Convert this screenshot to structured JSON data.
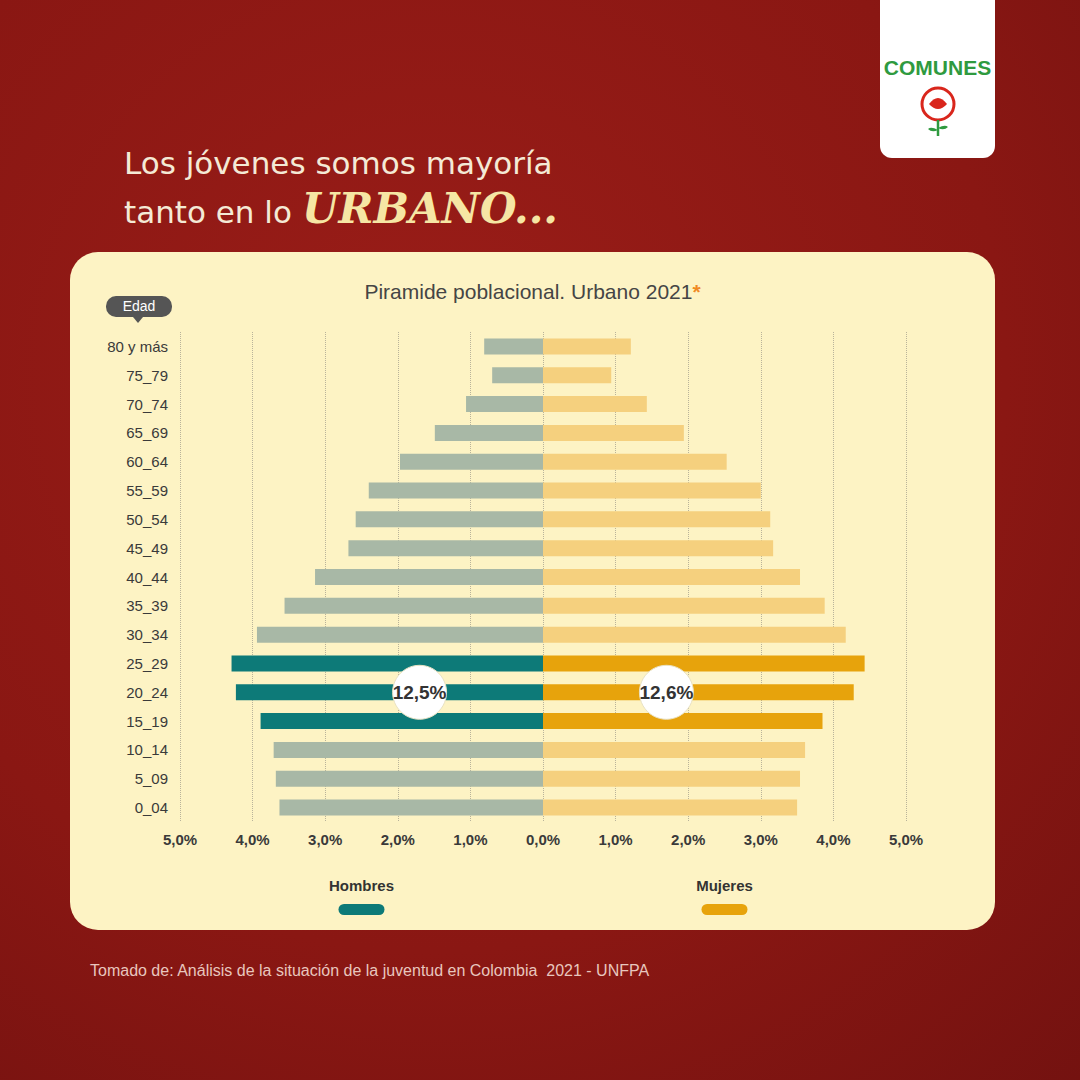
{
  "logo": "COMUNES",
  "headline": [
    "Los jóvenes somos mayoría",
    "tanto en lo"
  ],
  "headline_emphasis": "URBANO...",
  "source": "Tomado de: Análisis de la situación de la juventud en Colombia  2021 - UNFPA",
  "chart_data": {
    "type": "bar",
    "orientation": "horizontal",
    "title": "Piramide poblacional. Urbano 2021*",
    "y_label": "Edad",
    "categories": [
      "0_04",
      "5_09",
      "10_14",
      "15_19",
      "20_24",
      "25_29",
      "30_34",
      "35_39",
      "40_44",
      "45_49",
      "50_54",
      "55_59",
      "60_64",
      "65_69",
      "70_74",
      "75_79",
      "80 y más"
    ],
    "series": [
      {
        "name": "Hombres",
        "color": "#0d7a78",
        "colors": [
          "#a8b8a6",
          "#a8b8a6",
          "#a8b8a6",
          "#0d7a78",
          "#0d7a78",
          "#0d7a78",
          "#a8b8a6",
          "#a8b8a6",
          "#a8b8a6",
          "#a8b8a6",
          "#a8b8a6",
          "#a8b8a6",
          "#a8b8a6",
          "#a8b8a6",
          "#a8b8a6",
          "#a8b8a6",
          "#a8b8a6"
        ],
        "values": [
          3.63,
          3.68,
          3.71,
          3.89,
          4.23,
          4.29,
          3.94,
          3.56,
          3.14,
          2.68,
          2.58,
          2.4,
          1.97,
          1.49,
          1.06,
          0.7,
          0.81
        ],
        "annotation": {
          "value": 12.5,
          "label": "12,5%"
        }
      },
      {
        "name": "Mujeres",
        "color": "#e7a30c",
        "colors": [
          "#f5d07e",
          "#f5d07e",
          "#f5d07e",
          "#e7a30c",
          "#e7a30c",
          "#e7a30c",
          "#f5d07e",
          "#f5d07e",
          "#f5d07e",
          "#f5d07e",
          "#f5d07e",
          "#f5d07e",
          "#f5d07e",
          "#f5d07e",
          "#f5d07e",
          "#f5d07e",
          "#f5d07e"
        ],
        "values": [
          3.5,
          3.54,
          3.61,
          3.85,
          4.28,
          4.43,
          4.17,
          3.88,
          3.54,
          3.17,
          3.13,
          3.0,
          2.53,
          1.94,
          1.43,
          0.94,
          1.21
        ],
        "annotation": {
          "value": 12.6,
          "label": "12,6%"
        }
      }
    ],
    "xlim": [
      0,
      5
    ],
    "xticks": [
      {
        "value": 0,
        "label": "0,0%"
      },
      {
        "value": 1,
        "label": "1,0%"
      },
      {
        "value": 2,
        "label": "2,0%"
      },
      {
        "value": 3,
        "label": "3,0%"
      },
      {
        "value": 4,
        "label": "4,0%"
      },
      {
        "value": 5,
        "label": "5,0%"
      }
    ],
    "grid": true
  }
}
